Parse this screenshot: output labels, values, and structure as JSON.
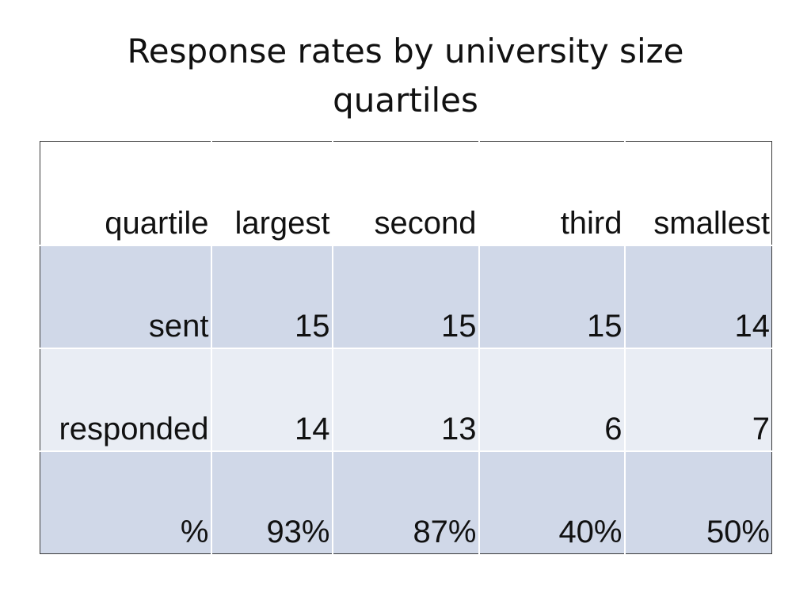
{
  "slide": {
    "title_lines": [
      "Response rates by university size",
      "quartiles"
    ]
  },
  "table": {
    "header": [
      "quartile",
      "largest",
      "second",
      "third",
      "smallest"
    ],
    "rows": [
      {
        "label": "sent",
        "values": [
          "15",
          "15",
          "15",
          "14"
        ]
      },
      {
        "label": "responded",
        "values": [
          "14",
          "13",
          "6",
          "7"
        ]
      },
      {
        "label": "%",
        "values": [
          "93%",
          "87%",
          "40%",
          "50%"
        ]
      }
    ]
  },
  "colors": {
    "band_dark": "#d0d8e8",
    "band_light": "#e9edf4",
    "border": "#3a3a3a"
  }
}
